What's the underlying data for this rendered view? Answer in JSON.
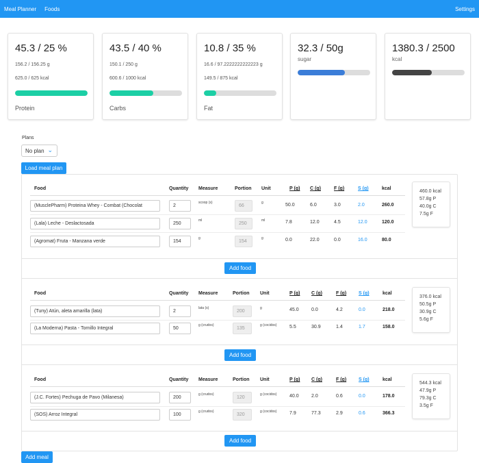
{
  "nav": {
    "brand": "Meal Planner",
    "foods": "Foods",
    "settings": "Settings"
  },
  "cards": [
    {
      "big": "45.3 / 25 %",
      "line1": "156.2 / 156.25 g",
      "line2": "625.0 / 625 kcal",
      "name": "Protein",
      "progress": 1.0,
      "color": "#1ccfa5"
    },
    {
      "big": "43.5 / 40 %",
      "line1": "150.1 / 250 g",
      "line2": "600.6 / 1000 kcal",
      "name": "Carbs",
      "progress": 0.6,
      "color": "#1ccfa5"
    },
    {
      "big": "10.8 / 35 %",
      "line1": "16.6 / 97.2222222222223 g",
      "line2": "149.5 / 875 kcal",
      "name": "Fat",
      "progress": 0.17,
      "color": "#1ccfa5"
    },
    {
      "big": "32.3 / 50g",
      "unit": "sugar",
      "progress": 0.65,
      "color": "#3b7dd8"
    },
    {
      "big": "1380.3 / 2500",
      "unit": "kcal",
      "progress": 0.55,
      "color": "#444444"
    }
  ],
  "plans": {
    "label": "Plans",
    "selected": "No plan",
    "load_label": "Load meal plan"
  },
  "table_headers": {
    "food": "Food",
    "quantity": "Quantity",
    "measure": "Measure",
    "portion": "Portion",
    "unit": "Unit",
    "p": "P (g)",
    "c": "C (g)",
    "f": "F (g)",
    "s": "S (g)",
    "kcal": "kcal"
  },
  "meals": [
    {
      "rows": [
        {
          "food": "(MusclePharm) Proteina Whey - Combat (Chocolat",
          "quantity": "2",
          "measure": "scoop (s)",
          "portion": "66",
          "unit": "g",
          "p": "50.0",
          "c": "6.0",
          "f": "3.0",
          "s": "2.0",
          "kcal": "260.0"
        },
        {
          "food": "(Lala) Leche - Deslactosada",
          "quantity": "250",
          "measure": "ml",
          "portion": "250",
          "unit": "ml",
          "p": "7.8",
          "c": "12.0",
          "f": "4.5",
          "s": "12.0",
          "kcal": "120.0"
        },
        {
          "food": "(Agromat) Fruta - Manzana verde",
          "quantity": "154",
          "measure": "g",
          "portion": "154",
          "unit": "g",
          "p": "0.0",
          "c": "22.0",
          "f": "0.0",
          "s": "16.0",
          "kcal": "80.0"
        }
      ],
      "summary": {
        "kcal": "460.0 kcal",
        "p": "57.8g P",
        "c": "40.0g C",
        "f": "7.5g F"
      },
      "add_label": "Add food"
    },
    {
      "rows": [
        {
          "food": "(Tuny) Atún, aleta amarilla (lata)",
          "quantity": "2",
          "measure": "lata (s)",
          "portion": "200",
          "unit": "g",
          "p": "45.0",
          "c": "0.0",
          "f": "4.2",
          "s": "0.0",
          "kcal": "218.0"
        },
        {
          "food": "(La Moderna) Pasta - Tornillo Integral",
          "quantity": "50",
          "measure": "g (crudos)",
          "portion": "135",
          "unit": "g (cocidos)",
          "p": "5.5",
          "c": "30.9",
          "f": "1.4",
          "s": "1.7",
          "kcal": "158.0"
        }
      ],
      "summary": {
        "kcal": "376.0 kcal",
        "p": "50.5g P",
        "c": "30.9g C",
        "f": "5.6g F"
      },
      "add_label": "Add food"
    },
    {
      "rows": [
        {
          "food": "(J.C. Fortes) Pechuga de Pavo (Milanesa)",
          "quantity": "200",
          "measure": "g (crudos)",
          "portion": "120",
          "unit": "g (cocidos)",
          "p": "40.0",
          "c": "2.0",
          "f": "0.6",
          "s": "0.0",
          "kcal": "178.0"
        },
        {
          "food": "(SOS) Arroz Integral",
          "quantity": "100",
          "measure": "g (crudos)",
          "portion": "320",
          "unit": "g (cocidos)",
          "p": "7.9",
          "c": "77.3",
          "f": "2.9",
          "s": "0.6",
          "kcal": "366.3"
        }
      ],
      "summary": {
        "kcal": "544.3 kcal",
        "p": "47.9g P",
        "c": "79.3g C",
        "f": "3.5g F"
      },
      "add_label": "Add food"
    }
  ],
  "add_meal_label": "Add meal",
  "icons": {
    "select_chevron": "chevron-down-icon"
  }
}
